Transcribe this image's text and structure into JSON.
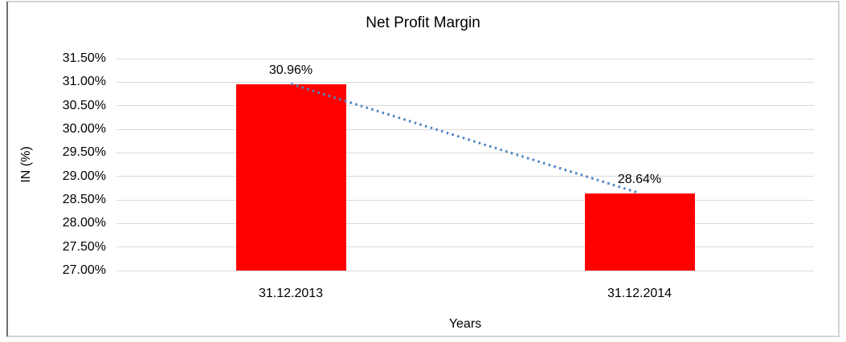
{
  "chart_data": {
    "type": "bar",
    "title": "Net Profit Margin",
    "xlabel": "Years",
    "ylabel": "IN (%)",
    "categories": [
      "31.12.2013",
      "31.12.2014"
    ],
    "values": [
      30.96,
      28.64
    ],
    "data_labels": [
      "30.96%",
      "28.64%"
    ],
    "ylim": [
      27.0,
      31.5
    ],
    "ytick_step": 0.5,
    "ytick_labels": [
      "31.50%",
      "31.00%",
      "30.50%",
      "30.00%",
      "29.50%",
      "29.00%",
      "28.50%",
      "28.00%",
      "27.50%",
      "27.00%"
    ],
    "grid": true,
    "legend_position": "none",
    "trendline": {
      "type": "linear",
      "style": "dotted",
      "from_value": 30.96,
      "to_value": 28.64
    },
    "colors": {
      "bar": "#ff0000",
      "trendline": "#4f87c5",
      "gridline": "#d9d9d9",
      "text": "#000000",
      "frame_border": "#d3d3d3",
      "background": "#ffffff"
    }
  }
}
